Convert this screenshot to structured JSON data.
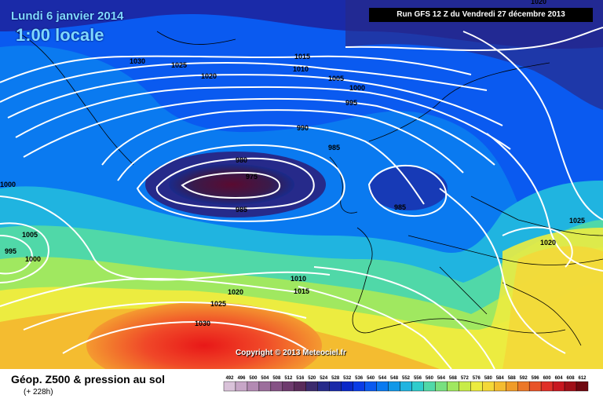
{
  "header": {
    "date": "Lundi 6 janvier 2014",
    "time": "1:00 locale",
    "run": "Run GFS 12 Z du Vendredi 27 décembre 2013"
  },
  "copyright": "Copyright © 2013 Meteociel.fr",
  "footer": {
    "title": "Géop. Z500 & pression au sol",
    "subtitle": "(+ 228h)"
  },
  "legend": {
    "values": [
      "492",
      "496",
      "500",
      "504",
      "508",
      "512",
      "516",
      "520",
      "524",
      "528",
      "532",
      "536",
      "540",
      "544",
      "548",
      "552",
      "556",
      "560",
      "564",
      "568",
      "572",
      "576",
      "580",
      "584",
      "588",
      "592",
      "596",
      "600",
      "604",
      "608",
      "612"
    ],
    "colors": [
      "#d9c2d9",
      "#c7a6c7",
      "#b38ab3",
      "#9c6e9c",
      "#855285",
      "#6e3a6e",
      "#5a2a5a",
      "#3c2a6e",
      "#262a8a",
      "#1a2aa8",
      "#0a28c8",
      "#0a3ce6",
      "#0a5af0",
      "#0a7af0",
      "#1298e8",
      "#20b4e0",
      "#30cccc",
      "#50d8a8",
      "#78e080",
      "#a0e860",
      "#c8ec48",
      "#ecec40",
      "#f4d838",
      "#f4bc30",
      "#f09c28",
      "#ec7828",
      "#e85428",
      "#e03028",
      "#c81820",
      "#a01018",
      "#700810"
    ]
  },
  "isobars": [
    {
      "label": "1030"
    },
    {
      "label": "1025"
    },
    {
      "label": "1020"
    },
    {
      "label": "1015"
    },
    {
      "label": "1010"
    },
    {
      "label": "1005"
    },
    {
      "label": "1000"
    },
    {
      "label": "995"
    },
    {
      "label": "990"
    },
    {
      "label": "985"
    },
    {
      "label": "980"
    },
    {
      "label": "975"
    },
    {
      "label": "985"
    },
    {
      "label": "985"
    },
    {
      "label": "1000"
    },
    {
      "label": "1005"
    },
    {
      "label": "995"
    },
    {
      "label": "1000"
    },
    {
      "label": "1010"
    },
    {
      "label": "1015"
    },
    {
      "label": "1020"
    },
    {
      "label": "1025"
    },
    {
      "label": "1030"
    },
    {
      "label": "1020"
    },
    {
      "label": "1025"
    },
    {
      "label": "1020"
    }
  ]
}
